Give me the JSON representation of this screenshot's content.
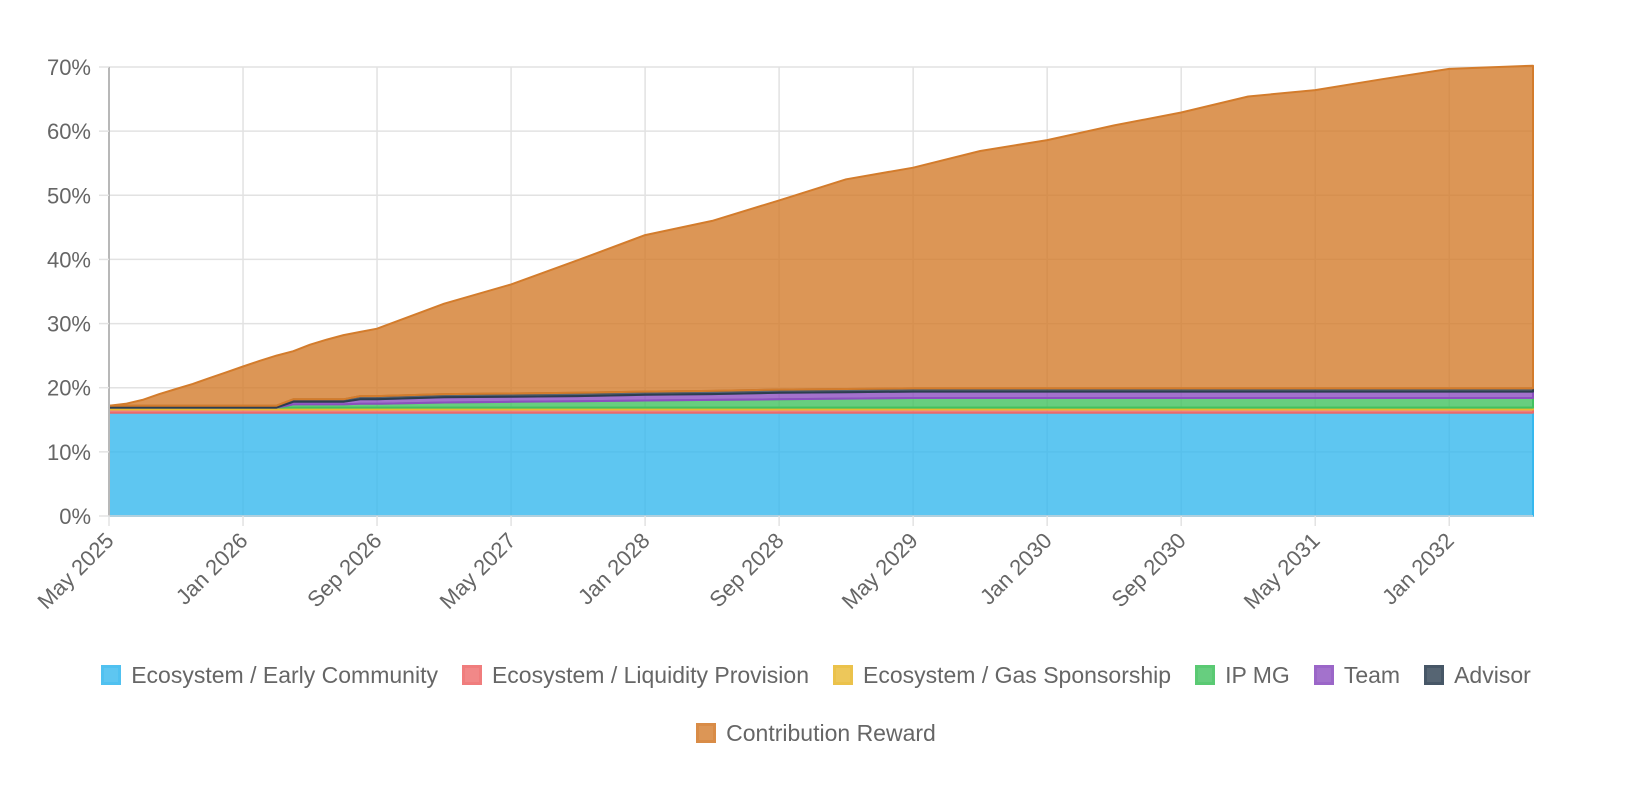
{
  "chart_data": {
    "type": "area",
    "stacked": true,
    "x": [
      "May 2025",
      "Jun 2025",
      "Jul 2025",
      "Aug 2025",
      "Sep 2025",
      "Oct 2025",
      "Nov 2025",
      "Dec 2025",
      "Jan 2026",
      "Feb 2026",
      "Mar 2026",
      "Apr 2026",
      "May 2026",
      "Jun 2026",
      "Jul 2026",
      "Aug 2026",
      "Sep 2026",
      "Jan 2027",
      "May 2027",
      "Sep 2027",
      "Jan 2028",
      "May 2028",
      "Sep 2028",
      "Jan 2029",
      "May 2029",
      "Sep 2029",
      "Jan 2030",
      "May 2030",
      "Sep 2030",
      "Jan 2031",
      "May 2031",
      "Sep 2031",
      "Jan 2032",
      "Jun 2032"
    ],
    "x_tick_labels": [
      "May 2025",
      "Jan 2026",
      "Sep 2026",
      "May 2027",
      "Jan 2028",
      "Sep 2028",
      "May 2029",
      "Jan 2030",
      "Sep 2030",
      "May 2031",
      "Jan 2032"
    ],
    "y_tick_labels": [
      "0%",
      "10%",
      "20%",
      "30%",
      "40%",
      "50%",
      "60%",
      "70%"
    ],
    "ylim": [
      0,
      70
    ],
    "grid": true,
    "legend_position": "bottom",
    "series": [
      {
        "name": "Ecosystem / Early Community",
        "color": "#36b8ee",
        "values": [
          16.1,
          16.1,
          16.1,
          16.1,
          16.1,
          16.1,
          16.1,
          16.1,
          16.1,
          16.1,
          16.1,
          16.1,
          16.1,
          16.1,
          16.1,
          16.1,
          16.1,
          16.1,
          16.1,
          16.1,
          16.1,
          16.1,
          16.1,
          16.1,
          16.1,
          16.1,
          16.1,
          16.1,
          16.1,
          16.1,
          16.1,
          16.1,
          16.1,
          16.1
        ]
      },
      {
        "name": "Ecosystem / Liquidity Provision",
        "color": "#ee6a6a",
        "values": [
          0.5,
          0.5,
          0.5,
          0.5,
          0.5,
          0.5,
          0.5,
          0.5,
          0.5,
          0.5,
          0.5,
          0.5,
          0.5,
          0.5,
          0.5,
          0.5,
          0.5,
          0.5,
          0.5,
          0.5,
          0.5,
          0.5,
          0.5,
          0.5,
          0.5,
          0.5,
          0.5,
          0.5,
          0.5,
          0.5,
          0.5,
          0.5,
          0.5,
          0.5
        ]
      },
      {
        "name": "Ecosystem / Gas Sponsorship",
        "color": "#e8b931",
        "values": [
          0.3,
          0.3,
          0.3,
          0.3,
          0.3,
          0.3,
          0.3,
          0.3,
          0.3,
          0.3,
          0.3,
          0.3,
          0.3,
          0.3,
          0.3,
          0.3,
          0.3,
          0.3,
          0.3,
          0.3,
          0.3,
          0.3,
          0.3,
          0.3,
          0.3,
          0.3,
          0.3,
          0.3,
          0.3,
          0.3,
          0.3,
          0.3,
          0.3,
          0.3
        ]
      },
      {
        "name": "IP MG",
        "color": "#41c25f",
        "values": [
          0,
          0,
          0,
          0,
          0,
          0,
          0,
          0,
          0,
          0,
          0,
          0.5,
          0.5,
          0.5,
          0.5,
          0.6,
          0.6,
          0.8,
          0.9,
          1.0,
          1.1,
          1.2,
          1.3,
          1.4,
          1.5,
          1.5,
          1.5,
          1.5,
          1.5,
          1.5,
          1.5,
          1.5,
          1.5,
          1.5
        ]
      },
      {
        "name": "Team",
        "color": "#8c4fbf",
        "values": [
          0,
          0,
          0,
          0,
          0,
          0,
          0,
          0,
          0,
          0,
          0,
          0.4,
          0.4,
          0.4,
          0.4,
          0.7,
          0.7,
          0.8,
          0.8,
          0.8,
          0.9,
          0.9,
          1.0,
          1.0,
          1.0,
          1.0,
          1.0,
          1.0,
          1.0,
          1.0,
          1.0,
          1.0,
          1.0,
          1.0
        ]
      },
      {
        "name": "Advisor",
        "color": "#2c3e50",
        "values": [
          0.3,
          0.3,
          0.3,
          0.3,
          0.3,
          0.3,
          0.3,
          0.3,
          0.3,
          0.3,
          0.3,
          0.4,
          0.4,
          0.4,
          0.4,
          0.5,
          0.5,
          0.5,
          0.5,
          0.5,
          0.5,
          0.5,
          0.5,
          0.5,
          0.5,
          0.5,
          0.5,
          0.5,
          0.5,
          0.5,
          0.5,
          0.5,
          0.5,
          0.5
        ]
      },
      {
        "name": "Contribution Reward",
        "color": "#d37c2c",
        "values": [
          0,
          0.3,
          0.9,
          1.8,
          2.6,
          3.4,
          4.3,
          5.2,
          6.1,
          7.0,
          7.8,
          7.5,
          8.5,
          9.3,
          10.0,
          10.0,
          10.5,
          14.1,
          17.0,
          20.7,
          24.4,
          26.5,
          29.5,
          32.7,
          34.4,
          37.0,
          38.7,
          41.0,
          43.0,
          45.5,
          46.5,
          48.2,
          49.8,
          50.3
        ]
      }
    ]
  }
}
